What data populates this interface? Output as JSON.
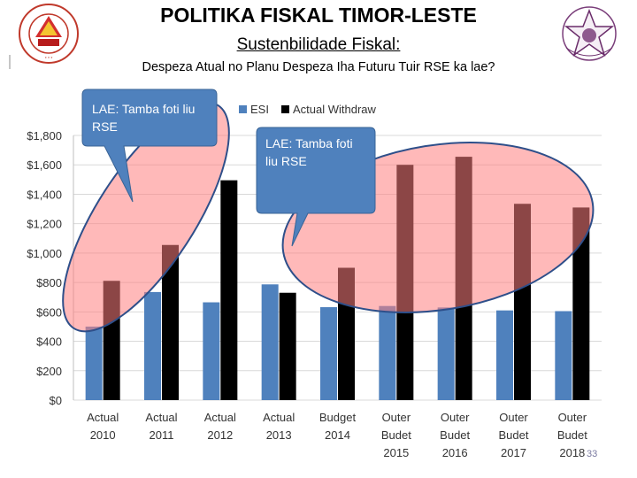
{
  "header": {
    "title": "POLITIKA FISKAL TIMOR-LESTE",
    "subtitle": "Sustenbilidade Fiskal:",
    "subtitle2": "Despeza Atual no Planu Despeza Iha Futuru Tuir RSE ka lae?"
  },
  "page_number": "33",
  "callouts": {
    "left": {
      "line1": "LAE: Tamba foti liu",
      "line2": "RSE"
    },
    "right": {
      "line1": "LAE:  Tamba foti",
      "line2": "liu RSE"
    }
  },
  "colors": {
    "esi": "#4f81bd",
    "actual_withdraw": "#000000",
    "callout_fill": "#4f81bd",
    "highlight_fill": "#ff8080",
    "highlight_stroke": "#2e4f8a"
  },
  "chart_data": {
    "type": "bar",
    "categories": [
      [
        "Actual",
        "2010"
      ],
      [
        "Actual",
        "2011"
      ],
      [
        "Actual",
        "2012"
      ],
      [
        "Actual",
        "2013"
      ],
      [
        "Budget",
        "2014"
      ],
      [
        "Outer",
        "Budet",
        "2015"
      ],
      [
        "Outer",
        "Budet",
        "2016"
      ],
      [
        "Outer",
        "Budet",
        "2017"
      ],
      [
        "Outer",
        "Budet",
        "2018"
      ]
    ],
    "series": [
      {
        "name": "ESI",
        "values": [
          500,
          735,
          665,
          787,
          632,
          640,
          630,
          610,
          605
        ]
      },
      {
        "name": "Actual Withdraw",
        "values": [
          811,
          1055,
          1495,
          730,
          900,
          1600,
          1655,
          1335,
          1310
        ]
      }
    ],
    "ylim": [
      0,
      1800
    ],
    "yticks": [
      "$0",
      "$200",
      "$400",
      "$600",
      "$800",
      "$1,000",
      "$1,200",
      "$1,400",
      "$1,600",
      "$1,800"
    ],
    "legend_position": "top",
    "grid": true
  }
}
